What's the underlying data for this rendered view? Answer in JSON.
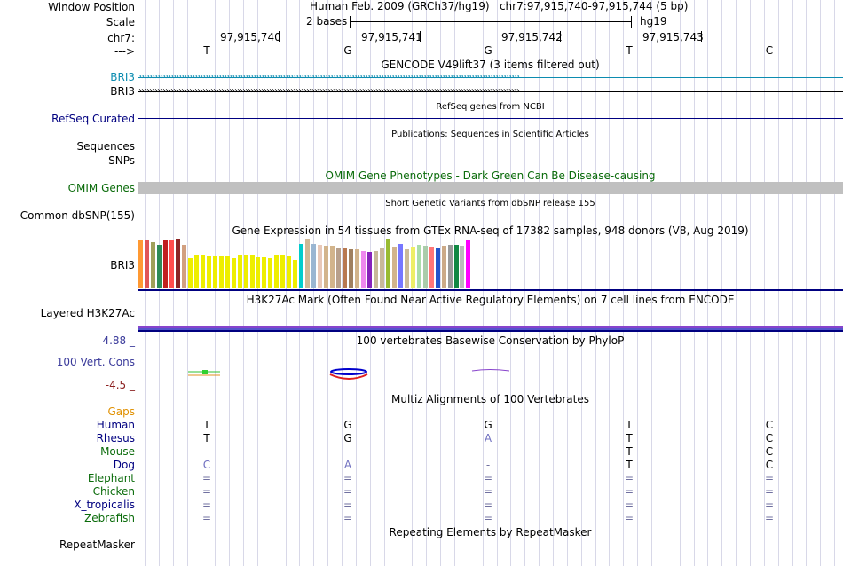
{
  "header": {
    "window_position_label": "Window Position",
    "scale_label": "Scale",
    "chr_label": "chr7:",
    "arrow_label": "--->",
    "position_text": "Human Feb. 2009 (GRCh37/hg19)   chr7:97,915,740-97,915,744 (5 bp)",
    "scale_text": "2 bases",
    "assembly": "hg19",
    "coords": [
      "97,915,740",
      "97,915,741",
      "97,915,742",
      "97,915,743"
    ],
    "bases": [
      "T",
      "G",
      "G",
      "T",
      "C"
    ]
  },
  "gencode": {
    "title": "GENCODE V49lift37 (3 items filtered out)",
    "genes": [
      "BRI3",
      "BRI3"
    ],
    "colors": [
      "#0c8cb0",
      "#000000"
    ]
  },
  "refseq": {
    "label": "RefSeq Curated",
    "title": "RefSeq genes from NCBI"
  },
  "publications": {
    "title": "Publications: Sequences in Scientific Articles",
    "label": "Sequences"
  },
  "snps": {
    "label": "SNPs"
  },
  "omim": {
    "title": "OMIM Gene Phenotypes - Dark Green Can Be Disease-causing",
    "label": "OMIM Genes",
    "color": "#0a6b0a"
  },
  "dbsnp": {
    "title": "Short Genetic Variants from dbSNP release 155",
    "label": "Common dbSNP(155)"
  },
  "gtex": {
    "title": "Gene Expression in 54 tissues from GTEx RNA-seq of 17382 samples, 948 donors (V8, Aug 2019)",
    "label": "BRI3",
    "bar_colors": [
      "#ff9933",
      "#e05555",
      "#a0a05a",
      "#2e8b57",
      "#c02020",
      "#ff4d4d",
      "#8b2525",
      "#d2a080",
      "#eeee00",
      "#eeee00",
      "#eeee00",
      "#eeee00",
      "#eeee00",
      "#eeee00",
      "#eeee00",
      "#eeee00",
      "#eeee00",
      "#eeee00",
      "#eeee00",
      "#eeee00",
      "#eeee00",
      "#eeee00",
      "#eeee00",
      "#eeee00",
      "#eeee00",
      "#eeee00",
      "#00cccc",
      "#cfb896",
      "#9ab6d2",
      "#e8c8b8",
      "#d2b48c",
      "#d2b48c",
      "#b8a08c",
      "#b87850",
      "#a08060",
      "#d2b48c",
      "#ee88ee",
      "#8822bb",
      "#c8b89a",
      "#c8b89a",
      "#99bb33",
      "#d2b48c",
      "#7777ff",
      "#ccbb99",
      "#eeee66",
      "#aaddaa",
      "#aaccaa",
      "#ff7777",
      "#2255cc",
      "#ccaa88",
      "#999999",
      "#118844",
      "#bbbbbb",
      "#ff00ff"
    ],
    "bar_values": [
      54,
      54,
      52,
      49,
      55,
      54,
      56,
      49,
      34,
      37,
      38,
      36,
      36,
      36,
      36,
      34,
      37,
      38,
      38,
      35,
      35,
      34,
      37,
      37,
      36,
      32,
      50,
      56,
      50,
      49,
      48,
      48,
      45,
      45,
      44,
      44,
      42,
      41,
      42,
      46,
      56,
      47,
      50,
      44,
      47,
      49,
      48,
      47,
      45,
      48,
      49,
      49,
      48,
      55
    ]
  },
  "h3k27ac": {
    "title": "H3K27Ac Mark (Often Found Near Active Regulatory Elements) on 7 cell lines from ENCODE",
    "label": "Layered H3K27Ac"
  },
  "conservation": {
    "title": "100 vertebrates Basewise Conservation by PhyloP",
    "label": "100 Vert. Cons",
    "max": "4.88 _",
    "min": "-4.5 _",
    "label_color": "#3b3b9b",
    "min_color": "#8b2020"
  },
  "multiz": {
    "title": "Multiz Alignments of 100 Vertebrates",
    "gaps_label": "Gaps",
    "species": [
      {
        "name": "Human",
        "color": "#000080",
        "bases": [
          "T",
          "G",
          "G",
          "T",
          "C"
        ]
      },
      {
        "name": "Rhesus",
        "color": "#000080",
        "bases": [
          "T",
          "G",
          "A",
          "T",
          "C"
        ]
      },
      {
        "name": "Mouse",
        "color": "#0a6b0a",
        "bases": [
          "-",
          "-",
          "-",
          "T",
          "C"
        ]
      },
      {
        "name": "Dog",
        "color": "#000080",
        "bases": [
          "C",
          "A",
          "-",
          "T",
          "C"
        ]
      },
      {
        "name": "Elephant",
        "color": "#0a6b0a",
        "bases": [
          "=",
          "=",
          "=",
          "=",
          "="
        ]
      },
      {
        "name": "Chicken",
        "color": "#0a6b0a",
        "bases": [
          "=",
          "=",
          "=",
          "=",
          "="
        ]
      },
      {
        "name": "X_tropicalis",
        "color": "#000080",
        "bases": [
          "=",
          "=",
          "=",
          "=",
          "="
        ]
      },
      {
        "name": "Zebrafish",
        "color": "#0a6b0a",
        "bases": [
          "=",
          "=",
          "=",
          "=",
          "="
        ]
      }
    ]
  },
  "repeatmasker": {
    "title": "Repeating Elements by RepeatMasker",
    "label": "RepeatMasker"
  }
}
